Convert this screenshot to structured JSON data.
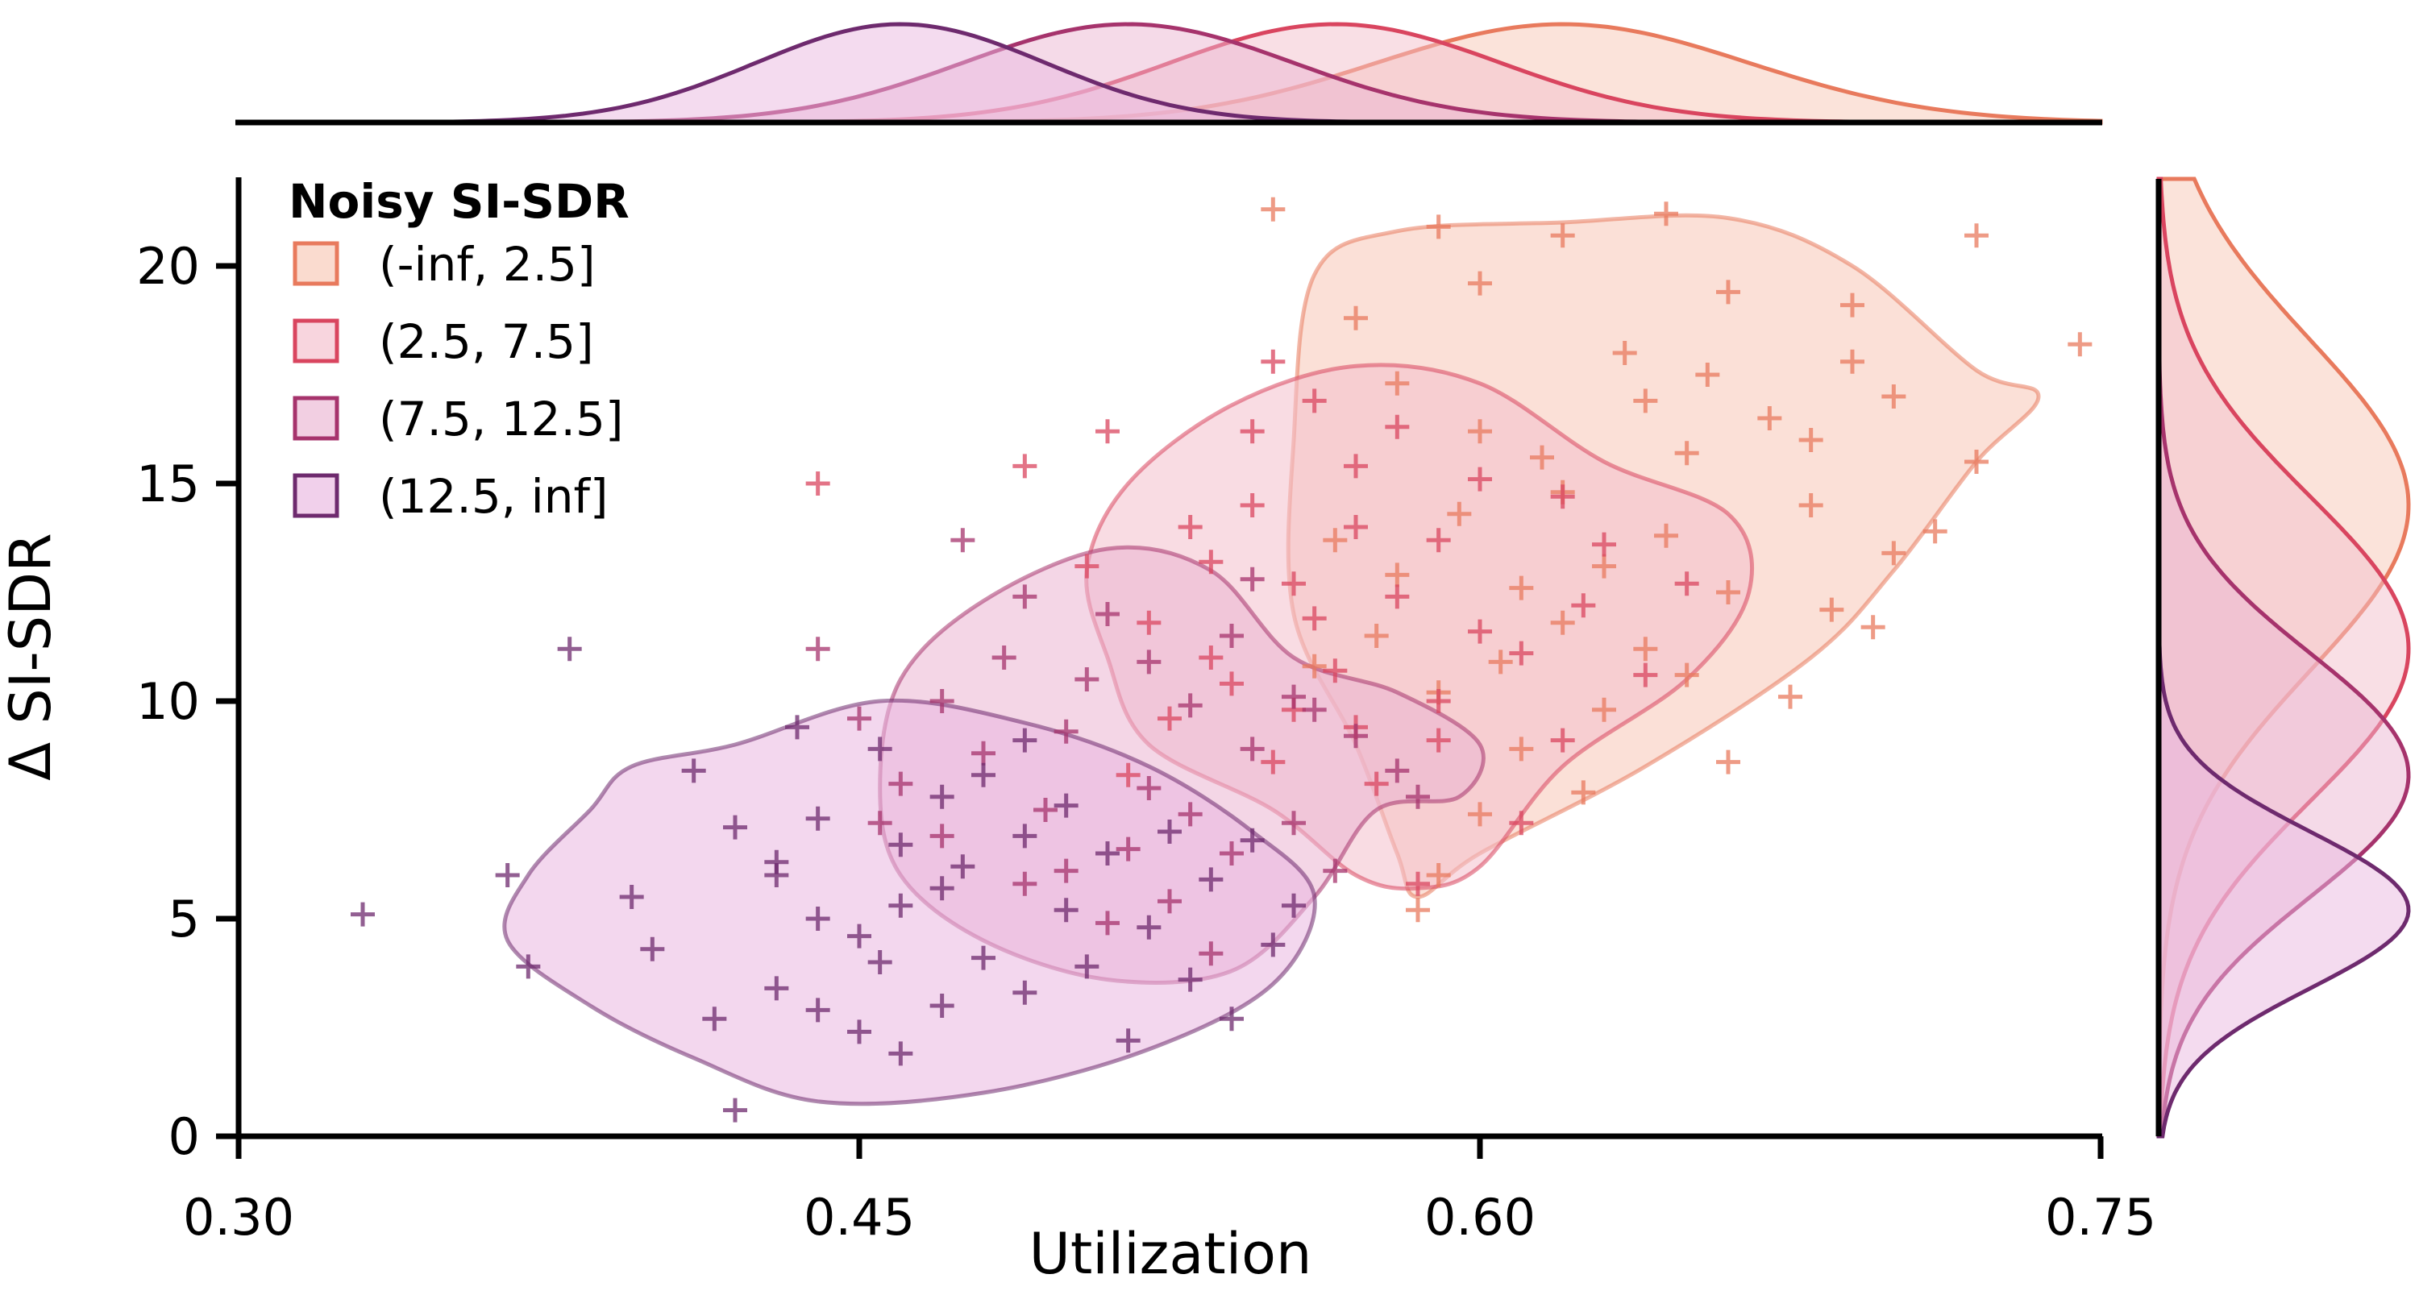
{
  "chart_data": {
    "type": "scatter",
    "title": "",
    "xlabel": "Utilization",
    "ylabel": "Δ SI-SDR",
    "xlim": [
      0.3,
      0.75
    ],
    "ylim": [
      0,
      22
    ],
    "xticks": [
      0.3,
      0.45,
      0.6,
      0.75
    ],
    "xtick_labels": [
      "0.30",
      "0.45",
      "0.60",
      "0.75"
    ],
    "yticks": [
      0,
      5,
      10,
      15,
      20
    ],
    "ytick_labels": [
      "0",
      "5",
      "10",
      "15",
      "20"
    ],
    "grid": false,
    "legend": {
      "title": "Noisy SI-SDR",
      "placement": "top-left",
      "entries": [
        "(-inf, 2.5]",
        "(2.5, 7.5]",
        "(7.5, 12.5]",
        "(12.5, inf]"
      ]
    },
    "marginals": {
      "top": "kde of Utilization per group",
      "right": "kde of Δ SI-SDR per group"
    },
    "series": [
      {
        "name": "(-inf, 2.5]",
        "color": "#e87a5d",
        "fill": "#f7c7b6",
        "center": {
          "x": 0.625,
          "y": 14.0
        },
        "spread": {
          "x": 0.04,
          "y": 3.3
        },
        "marginal_x": {
          "mean": 0.62,
          "sd": 0.045
        },
        "marginal_y": {
          "mean": 14.5,
          "sd": 3.8
        },
        "contour": [
          [
            0.56,
            19.8
          ],
          [
            0.58,
            20.8
          ],
          [
            0.62,
            21.0
          ],
          [
            0.66,
            21.1
          ],
          [
            0.69,
            20.0
          ],
          [
            0.72,
            17.6
          ],
          [
            0.735,
            17.0
          ],
          [
            0.72,
            15.5
          ],
          [
            0.7,
            13.0
          ],
          [
            0.68,
            11.0
          ],
          [
            0.64,
            8.5
          ],
          [
            0.6,
            6.5
          ],
          [
            0.585,
            5.5
          ],
          [
            0.58,
            6.5
          ],
          [
            0.57,
            9.0
          ],
          [
            0.555,
            12.0
          ],
          [
            0.555,
            16.0
          ]
        ],
        "points": [
          [
            0.55,
            21.3
          ],
          [
            0.59,
            20.9
          ],
          [
            0.62,
            20.7
          ],
          [
            0.645,
            21.2
          ],
          [
            0.72,
            20.7
          ],
          [
            0.69,
            19.1
          ],
          [
            0.745,
            18.2
          ],
          [
            0.69,
            17.8
          ],
          [
            0.7,
            17.0
          ],
          [
            0.72,
            15.5
          ],
          [
            0.68,
            14.5
          ],
          [
            0.71,
            13.9
          ],
          [
            0.66,
            12.5
          ],
          [
            0.685,
            12.1
          ],
          [
            0.64,
            11.2
          ],
          [
            0.65,
            10.6
          ],
          [
            0.63,
            9.8
          ],
          [
            0.61,
            8.9
          ],
          [
            0.6,
            7.4
          ],
          [
            0.585,
            5.2
          ],
          [
            0.59,
            6.0
          ],
          [
            0.62,
            14.8
          ],
          [
            0.6,
            16.2
          ],
          [
            0.57,
            18.8
          ],
          [
            0.58,
            17.3
          ],
          [
            0.63,
            13.1
          ],
          [
            0.61,
            12.6
          ],
          [
            0.65,
            15.7
          ],
          [
            0.67,
            16.5
          ],
          [
            0.6,
            19.6
          ],
          [
            0.635,
            18.0
          ],
          [
            0.655,
            17.5
          ],
          [
            0.565,
            13.7
          ],
          [
            0.575,
            11.5
          ],
          [
            0.59,
            10.2
          ],
          [
            0.62,
            11.8
          ],
          [
            0.66,
            8.6
          ],
          [
            0.675,
            10.1
          ],
          [
            0.695,
            11.7
          ],
          [
            0.645,
            13.8
          ],
          [
            0.615,
            15.6
          ],
          [
            0.595,
            14.3
          ],
          [
            0.58,
            12.9
          ],
          [
            0.56,
            10.8
          ],
          [
            0.625,
            7.9
          ],
          [
            0.605,
            10.9
          ],
          [
            0.64,
            16.9
          ],
          [
            0.66,
            19.4
          ],
          [
            0.68,
            16.0
          ],
          [
            0.7,
            13.4
          ]
        ]
      },
      {
        "name": "(2.5, 7.5]",
        "color": "#d9455f",
        "fill": "#f4bfcc",
        "center": {
          "x": 0.565,
          "y": 11.0
        },
        "spread": {
          "x": 0.04,
          "y": 3.0
        },
        "marginal_x": {
          "mean": 0.565,
          "sd": 0.04
        },
        "marginal_y": {
          "mean": 11.2,
          "sd": 3.5
        },
        "contour": [
          [
            0.515,
            15.0
          ],
          [
            0.54,
            16.8
          ],
          [
            0.57,
            17.7
          ],
          [
            0.6,
            17.3
          ],
          [
            0.63,
            15.5
          ],
          [
            0.66,
            14.3
          ],
          [
            0.665,
            12.5
          ],
          [
            0.65,
            10.5
          ],
          [
            0.62,
            8.5
          ],
          [
            0.6,
            6.2
          ],
          [
            0.585,
            5.7
          ],
          [
            0.57,
            6.0
          ],
          [
            0.55,
            7.5
          ],
          [
            0.52,
            9.0
          ],
          [
            0.51,
            11.0
          ],
          [
            0.505,
            13.0
          ]
        ],
        "points": [
          [
            0.51,
            16.2
          ],
          [
            0.55,
            17.8
          ],
          [
            0.56,
            16.9
          ],
          [
            0.58,
            16.3
          ],
          [
            0.6,
            15.1
          ],
          [
            0.63,
            13.6
          ],
          [
            0.65,
            12.7
          ],
          [
            0.61,
            11.1
          ],
          [
            0.59,
            10.0
          ],
          [
            0.57,
            9.4
          ],
          [
            0.55,
            8.6
          ],
          [
            0.525,
            9.6
          ],
          [
            0.52,
            11.8
          ],
          [
            0.535,
            13.2
          ],
          [
            0.545,
            14.5
          ],
          [
            0.57,
            14.0
          ],
          [
            0.58,
            12.4
          ],
          [
            0.56,
            11.9
          ],
          [
            0.54,
            10.4
          ],
          [
            0.555,
            12.7
          ],
          [
            0.59,
            13.7
          ],
          [
            0.62,
            9.1
          ],
          [
            0.61,
            7.2
          ],
          [
            0.585,
            5.8
          ],
          [
            0.44,
            15.0
          ],
          [
            0.49,
            15.4
          ],
          [
            0.535,
            11.0
          ],
          [
            0.565,
            10.7
          ],
          [
            0.575,
            8.1
          ],
          [
            0.6,
            11.6
          ],
          [
            0.625,
            12.2
          ],
          [
            0.53,
            14.0
          ],
          [
            0.545,
            16.2
          ],
          [
            0.57,
            15.4
          ],
          [
            0.505,
            13.1
          ],
          [
            0.515,
            8.3
          ],
          [
            0.59,
            9.1
          ],
          [
            0.555,
            9.8
          ],
          [
            0.64,
            10.6
          ],
          [
            0.62,
            14.7
          ]
        ]
      },
      {
        "name": "(7.5, 12.5]",
        "color": "#a6336c",
        "fill": "#ebb5d2",
        "center": {
          "x": 0.515,
          "y": 8.5
        },
        "spread": {
          "x": 0.04,
          "y": 2.6
        },
        "marginal_x": {
          "mean": 0.515,
          "sd": 0.04
        },
        "marginal_y": {
          "mean": 8.3,
          "sd": 2.8
        },
        "contour": [
          [
            0.46,
            10.5
          ],
          [
            0.48,
            12.3
          ],
          [
            0.51,
            13.5
          ],
          [
            0.535,
            13.0
          ],
          [
            0.555,
            11.0
          ],
          [
            0.58,
            10.2
          ],
          [
            0.6,
            9.0
          ],
          [
            0.595,
            7.8
          ],
          [
            0.575,
            7.5
          ],
          [
            0.56,
            5.5
          ],
          [
            0.54,
            3.8
          ],
          [
            0.51,
            3.6
          ],
          [
            0.48,
            4.5
          ],
          [
            0.46,
            6.0
          ],
          [
            0.455,
            8.0
          ]
        ],
        "points": [
          [
            0.44,
            11.2
          ],
          [
            0.45,
            9.6
          ],
          [
            0.47,
            10.0
          ],
          [
            0.49,
            12.4
          ],
          [
            0.51,
            12.0
          ],
          [
            0.52,
            10.9
          ],
          [
            0.54,
            11.5
          ],
          [
            0.555,
            10.1
          ],
          [
            0.57,
            9.2
          ],
          [
            0.58,
            8.4
          ],
          [
            0.555,
            7.2
          ],
          [
            0.54,
            6.5
          ],
          [
            0.525,
            5.4
          ],
          [
            0.51,
            4.9
          ],
          [
            0.49,
            5.8
          ],
          [
            0.47,
            6.9
          ],
          [
            0.46,
            8.1
          ],
          [
            0.48,
            8.8
          ],
          [
            0.5,
            9.3
          ],
          [
            0.52,
            8.0
          ],
          [
            0.53,
            7.4
          ],
          [
            0.545,
            8.9
          ],
          [
            0.56,
            9.8
          ],
          [
            0.505,
            10.5
          ],
          [
            0.485,
            11.0
          ],
          [
            0.535,
            4.2
          ],
          [
            0.565,
            6.1
          ],
          [
            0.585,
            7.8
          ],
          [
            0.475,
            13.7
          ],
          [
            0.495,
            7.5
          ],
          [
            0.515,
            6.6
          ],
          [
            0.53,
            9.9
          ],
          [
            0.455,
            7.2
          ],
          [
            0.5,
            6.1
          ],
          [
            0.545,
            12.8
          ]
        ]
      },
      {
        "name": "(12.5, inf]",
        "color": "#6e2a6e",
        "fill": "#e9b7e0",
        "center": {
          "x": 0.46,
          "y": 5.5
        },
        "spread": {
          "x": 0.035,
          "y": 2.0
        },
        "marginal_x": {
          "mean": 0.46,
          "sd": 0.035
        },
        "marginal_y": {
          "mean": 5.2,
          "sd": 1.8
        },
        "contour": [
          [
            0.395,
            8.5
          ],
          [
            0.42,
            9.0
          ],
          [
            0.455,
            10.0
          ],
          [
            0.49,
            9.5
          ],
          [
            0.52,
            8.5
          ],
          [
            0.545,
            7.0
          ],
          [
            0.56,
            5.5
          ],
          [
            0.55,
            3.5
          ],
          [
            0.52,
            2.0
          ],
          [
            0.48,
            1.0
          ],
          [
            0.44,
            0.8
          ],
          [
            0.41,
            1.8
          ],
          [
            0.385,
            3.0
          ],
          [
            0.365,
            4.5
          ],
          [
            0.37,
            6.0
          ],
          [
            0.385,
            7.5
          ]
        ],
        "points": [
          [
            0.33,
            5.1
          ],
          [
            0.365,
            6.0
          ],
          [
            0.37,
            3.9
          ],
          [
            0.38,
            11.2
          ],
          [
            0.395,
            5.5
          ],
          [
            0.4,
            4.3
          ],
          [
            0.41,
            8.4
          ],
          [
            0.42,
            7.1
          ],
          [
            0.43,
            6.3
          ],
          [
            0.44,
            5.0
          ],
          [
            0.45,
            4.6
          ],
          [
            0.46,
            6.7
          ],
          [
            0.47,
            5.7
          ],
          [
            0.48,
            4.1
          ],
          [
            0.49,
            3.3
          ],
          [
            0.5,
            5.2
          ],
          [
            0.51,
            6.5
          ],
          [
            0.52,
            4.8
          ],
          [
            0.53,
            3.6
          ],
          [
            0.54,
            2.7
          ],
          [
            0.55,
            4.4
          ],
          [
            0.44,
            2.9
          ],
          [
            0.45,
            2.4
          ],
          [
            0.46,
            1.9
          ],
          [
            0.43,
            3.4
          ],
          [
            0.42,
            0.6
          ],
          [
            0.47,
            7.8
          ],
          [
            0.48,
            8.3
          ],
          [
            0.49,
            9.1
          ],
          [
            0.455,
            8.9
          ],
          [
            0.435,
            9.4
          ],
          [
            0.415,
            2.7
          ],
          [
            0.505,
            3.9
          ],
          [
            0.515,
            2.2
          ],
          [
            0.525,
            7.0
          ],
          [
            0.535,
            5.9
          ],
          [
            0.545,
            6.8
          ],
          [
            0.555,
            5.3
          ],
          [
            0.47,
            3.0
          ],
          [
            0.43,
            6.0
          ],
          [
            0.46,
            5.3
          ],
          [
            0.475,
            6.2
          ],
          [
            0.44,
            7.3
          ],
          [
            0.49,
            6.9
          ],
          [
            0.5,
            7.6
          ],
          [
            0.455,
            4.0
          ]
        ]
      }
    ]
  }
}
